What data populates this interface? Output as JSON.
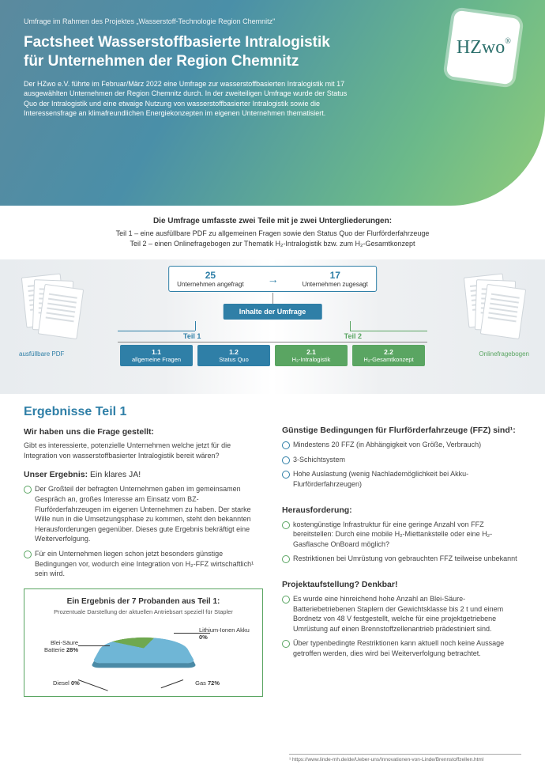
{
  "header": {
    "subhead": "Umfrage im Rahmen des Projektes „Wasserstoff-Technologie Region Chemnitz\"",
    "title_l1": "Factsheet Wasserstoffbasierte Intralogistik",
    "title_l2": "für Unternehmen der Region Chemnitz",
    "intro": "Der HZwo e.V. führte im Februar/März 2022 eine Umfrage zur wasserstoffbasierten Intralogistik mit 17 ausgewählten Unternehmen der Region Chemnitz durch. In der zweiteiligen Umfrage wurde der Status Quo der Intralogistik und eine etwaige Nutzung von wasserstoffbasierter Intralogistik sowie die Interessensfrage an klimafreundlichen Energiekonzepten im eigenen Unternehmen thematisiert.",
    "logo": "HZwo"
  },
  "survey": {
    "lead": "Die Umfrage umfasste zwei Teile mit je zwei Untergliederungen:",
    "line1": "Teil 1 – eine ausfüllbare PDF zu allgemeinen Fragen sowie den Status Quo der Flurförderfahrzeuge",
    "line2": "Teil 2 – einen Onlinefragebogen zur Thematik H₂-Intralogistik bzw. zum H₂-Gesamtkonzept",
    "caption_left": "ausfüllbare PDF",
    "caption_right": "Onlinefragebogen",
    "asked_n": "25",
    "asked_t": "Unternehmen angefragt",
    "agreed_n": "17",
    "agreed_t": "Unternehmen zugesagt",
    "mid": "Inhalte der Umfrage",
    "teil1": "Teil 1",
    "teil2": "Teil 2",
    "leaf_1_1_n": "1.1",
    "leaf_1_1_t": "allgemeine Fragen",
    "leaf_1_2_n": "1.2",
    "leaf_1_2_t": "Status Quo",
    "leaf_2_1_n": "2.1",
    "leaf_2_1_t": "H₂-Intralogistik",
    "leaf_2_2_n": "2.2",
    "leaf_2_2_t": "H₂-Gesamtkonzept"
  },
  "results": {
    "title": "Ergebnisse Teil 1",
    "q_head": "Wir haben uns die Frage gestellt:",
    "q_text": "Gibt es interessierte, potenzielle Unternehmen welche jetzt für die Integration von wasserstoffbasierter Intralogistik bereit wären?",
    "ans_head": "Unser Ergebnis: Ein klares JA!",
    "ans_b1": "Der Großteil der befragten Unternehmen gaben im gemein­samen Gespräch an, großes Interesse am Einsatz vom BZ-Flurförderfahrzeugen im eigenen Unternehmen zu haben. Der starke Wille nun in die Umsetzungsphase zu kommen, steht den bekannten Herausforderungen gegenüber. Dieses gute Ergebnis bekräftigt eine Weiterverfolgung.",
    "ans_b2": "Für ein Unternehmen liegen schon jetzt besonders günstige Bedingungen vor, wodurch eine Integration von H₂-FFZ wirtschaftlich¹ sein wird.",
    "cond_head": "Günstige Bedingungen für Flurförderfahrzeuge (FFZ) sind¹:",
    "cond_b1": "Mindestens 20 FFZ (in Abhängigkeit von Größe, Verbrauch)",
    "cond_b2": "3-Schichtsystem",
    "cond_b3": "Hohe Auslastung (wenig Nachlademöglichkeit bei Akku-Flurförderfahrzeugen)",
    "chal_head": "Herausforderung:",
    "chal_b1": "kostengünstige Infrastruktur für eine geringe Anzahl von FFZ bereitstellen: Durch eine mobile H₂-Miettankstelle oder eine H₂-Gasflasche OnBoard möglich?",
    "chal_b2": "Restriktionen bei Umrüstung von gebrauchten FFZ teilweise unbekannt",
    "proj_head": "Projektaufstellung? Denkbar!",
    "proj_b1": "Es wurde eine hinreichend hohe Anzahl an Blei-Säure-Batteriebetriebenen Staplern der Gewichtsklasse bis 2 t und einem Bordnetz von 48 V festgestellt, welche für eine projektgetriebene Umrüstung auf einen Brennstoff­zellenantrieb prädestiniert sind.",
    "proj_b2": "Über typenbedingte Restriktionen kann aktuell noch keine Aussage getroffen werden, dies wird bei Weiter­verfolgung betrachtet."
  },
  "chart": {
    "box_title": "Ein Ergebnis der 7 Probanden aus Teil 1:",
    "box_sub": "Prozentuale Darstellung der aktuellen Antriebsart speziell für Stapler",
    "blei_l": "Blei-Säure Batterie",
    "blei_v": "28%",
    "li_l": "Lithium-Ionen Akku",
    "li_v": "0%",
    "diesel_l": "Diesel",
    "diesel_v": "0%",
    "gas_l": "Gas",
    "gas_v": "72%",
    "colors": {
      "blei": "#6fa84f",
      "gas": "#6fb6d6",
      "side": "#4a8aa6"
    }
  },
  "footnote": "¹ https://www.linde-mh.de/de/Ueber-uns/Innovationen-von-Linde/Brennstoffzellen.html"
}
